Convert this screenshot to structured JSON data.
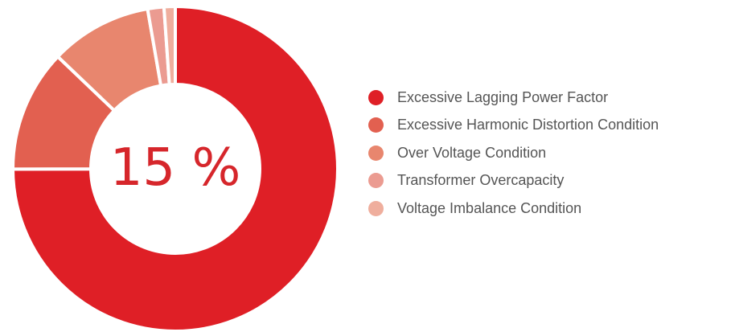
{
  "center_text": "15 %",
  "chart_data": {
    "type": "pie",
    "style": "donut",
    "start_angle_deg": 0,
    "categories": [
      "Excessive Lagging Power Factor",
      "Excessive Harmonic Distortion Condition",
      "Over Voltage Condition",
      "Transformer Overcapacity",
      "Voltage Imbalance Condition"
    ],
    "values": [
      74,
      12,
      10,
      1.6,
      1.1
    ],
    "colors": [
      "#df1f26",
      "#e26050",
      "#e8866e",
      "#eb9b91",
      "#efae9d"
    ],
    "legend_position": "right"
  },
  "legend": [
    {
      "label": "Excessive Lagging Power Factor",
      "color": "#df1f26"
    },
    {
      "label": "Excessive Harmonic Distortion Condition",
      "color": "#e26050"
    },
    {
      "label": "Over Voltage Condition",
      "color": "#e8866e"
    },
    {
      "label": "Transformer Overcapacity",
      "color": "#eb9b91"
    },
    {
      "label": "Voltage Imbalance Condition",
      "color": "#efae9d"
    }
  ]
}
